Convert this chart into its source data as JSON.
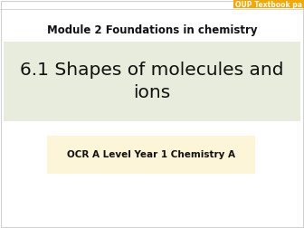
{
  "bg_color": "#ffffff",
  "border_color": "#d0d0d0",
  "module_text": "Module 2 Foundations in chemistry",
  "module_fontsize": 8.5,
  "title_text": "6.1 Shapes of molecules and\nions",
  "title_fontsize": 14.5,
  "title_bg_color": "#e8ecdc",
  "subtitle_text": "OCR A Level Year 1 Chemistry A",
  "subtitle_fontsize": 7.5,
  "subtitle_bg_color": "#fdf5d8",
  "oup_text": "OUP Textbook pa",
  "oup_bg_color": "#f5a800",
  "oup_fontsize": 5.5,
  "oup_text_color": "#ffffff"
}
